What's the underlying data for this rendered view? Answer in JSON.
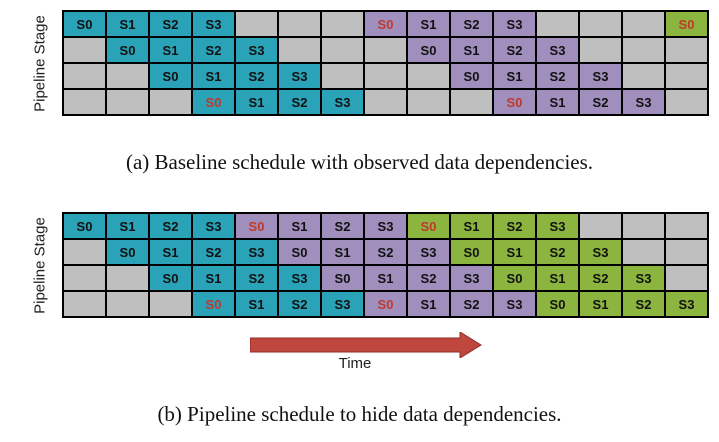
{
  "top": {
    "ylabel": "Pipeline Stage",
    "caption": "(a) Baseline schedule with observed data dependencies.",
    "rows": [
      [
        [
          "S0",
          "b",
          0
        ],
        [
          "S1",
          "b",
          0
        ],
        [
          "S2",
          "b",
          0
        ],
        [
          "S3",
          "b",
          0
        ],
        [
          "",
          "e",
          0
        ],
        [
          "",
          "e",
          0
        ],
        [
          "",
          "e",
          0
        ],
        [
          "S0",
          "p",
          1
        ],
        [
          "S1",
          "p",
          0
        ],
        [
          "S2",
          "p",
          0
        ],
        [
          "S3",
          "p",
          0
        ],
        [
          "",
          "e",
          0
        ],
        [
          "",
          "e",
          0
        ],
        [
          "",
          "e",
          0
        ],
        [
          "S0",
          "g",
          1
        ]
      ],
      [
        [
          "",
          "e",
          0
        ],
        [
          "S0",
          "b",
          0
        ],
        [
          "S1",
          "b",
          0
        ],
        [
          "S2",
          "b",
          0
        ],
        [
          "S3",
          "b",
          0
        ],
        [
          "",
          "e",
          0
        ],
        [
          "",
          "e",
          0
        ],
        [
          "",
          "e",
          0
        ],
        [
          "S0",
          "p",
          0
        ],
        [
          "S1",
          "p",
          0
        ],
        [
          "S2",
          "p",
          0
        ],
        [
          "S3",
          "p",
          0
        ],
        [
          "",
          "e",
          0
        ],
        [
          "",
          "e",
          0
        ],
        [
          "",
          "e",
          0
        ]
      ],
      [
        [
          "",
          "e",
          0
        ],
        [
          "",
          "e",
          0
        ],
        [
          "S0",
          "b",
          0
        ],
        [
          "S1",
          "b",
          0
        ],
        [
          "S2",
          "b",
          0
        ],
        [
          "S3",
          "b",
          0
        ],
        [
          "",
          "e",
          0
        ],
        [
          "",
          "e",
          0
        ],
        [
          "",
          "e",
          0
        ],
        [
          "S0",
          "p",
          0
        ],
        [
          "S1",
          "p",
          0
        ],
        [
          "S2",
          "p",
          0
        ],
        [
          "S3",
          "p",
          0
        ],
        [
          "",
          "e",
          0
        ],
        [
          "",
          "e",
          0
        ]
      ],
      [
        [
          "",
          "e",
          0
        ],
        [
          "",
          "e",
          0
        ],
        [
          "",
          "e",
          0
        ],
        [
          "S0",
          "b",
          1
        ],
        [
          "S1",
          "b",
          0
        ],
        [
          "S2",
          "b",
          0
        ],
        [
          "S3",
          "b",
          0
        ],
        [
          "",
          "e",
          0
        ],
        [
          "",
          "e",
          0
        ],
        [
          "",
          "e",
          0
        ],
        [
          "S0",
          "p",
          1
        ],
        [
          "S1",
          "p",
          0
        ],
        [
          "S2",
          "p",
          0
        ],
        [
          "S3",
          "p",
          0
        ],
        [
          "",
          "e",
          0
        ]
      ]
    ]
  },
  "bottom": {
    "ylabel": "Pipeline Stage",
    "caption": "(b) Pipeline schedule to hide data dependencies.",
    "time_label": "Time",
    "rows": [
      [
        [
          "S0",
          "b",
          0
        ],
        [
          "S1",
          "b",
          0
        ],
        [
          "S2",
          "b",
          0
        ],
        [
          "S3",
          "b",
          0
        ],
        [
          "S0",
          "p",
          1
        ],
        [
          "S1",
          "p",
          0
        ],
        [
          "S2",
          "p",
          0
        ],
        [
          "S3",
          "p",
          0
        ],
        [
          "S0",
          "g",
          1
        ],
        [
          "S1",
          "g",
          0
        ],
        [
          "S2",
          "g",
          0
        ],
        [
          "S3",
          "g",
          0
        ],
        [
          "",
          "e",
          0
        ],
        [
          "",
          "e",
          0
        ],
        [
          "",
          "e",
          0
        ]
      ],
      [
        [
          "",
          "e",
          0
        ],
        [
          "S0",
          "b",
          0
        ],
        [
          "S1",
          "b",
          0
        ],
        [
          "S2",
          "b",
          0
        ],
        [
          "S3",
          "b",
          0
        ],
        [
          "S0",
          "p",
          0
        ],
        [
          "S1",
          "p",
          0
        ],
        [
          "S2",
          "p",
          0
        ],
        [
          "S3",
          "p",
          0
        ],
        [
          "S0",
          "g",
          0
        ],
        [
          "S1",
          "g",
          0
        ],
        [
          "S2",
          "g",
          0
        ],
        [
          "S3",
          "g",
          0
        ],
        [
          "",
          "e",
          0
        ],
        [
          "",
          "e",
          0
        ]
      ],
      [
        [
          "",
          "e",
          0
        ],
        [
          "",
          "e",
          0
        ],
        [
          "S0",
          "b",
          0
        ],
        [
          "S1",
          "b",
          0
        ],
        [
          "S2",
          "b",
          0
        ],
        [
          "S3",
          "b",
          0
        ],
        [
          "S0",
          "p",
          0
        ],
        [
          "S1",
          "p",
          0
        ],
        [
          "S2",
          "p",
          0
        ],
        [
          "S3",
          "p",
          0
        ],
        [
          "S0",
          "g",
          0
        ],
        [
          "S1",
          "g",
          0
        ],
        [
          "S2",
          "g",
          0
        ],
        [
          "S3",
          "g",
          0
        ],
        [
          "",
          "e",
          0
        ]
      ],
      [
        [
          "",
          "e",
          0
        ],
        [
          "",
          "e",
          0
        ],
        [
          "",
          "e",
          0
        ],
        [
          "S0",
          "b",
          1
        ],
        [
          "S1",
          "b",
          0
        ],
        [
          "S2",
          "b",
          0
        ],
        [
          "S3",
          "b",
          0
        ],
        [
          "S0",
          "p",
          1
        ],
        [
          "S1",
          "p",
          0
        ],
        [
          "S2",
          "p",
          0
        ],
        [
          "S3",
          "p",
          0
        ],
        [
          "S0",
          "g",
          0
        ],
        [
          "S1",
          "g",
          0
        ],
        [
          "S2",
          "g",
          0
        ],
        [
          "S3",
          "g",
          0
        ]
      ]
    ]
  },
  "colors": {
    "blue": "#2aa2b8",
    "purple": "#a08fbd",
    "green": "#8cb53f",
    "empty": "#bfbfbf",
    "red_text": "#c0392b",
    "arrow": "#c0473d"
  }
}
